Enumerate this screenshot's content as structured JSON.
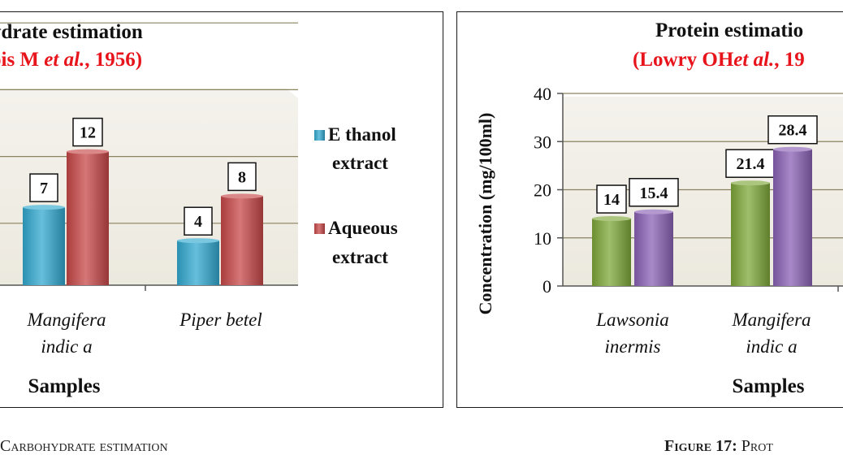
{
  "charts": {
    "left": {
      "title_line1": "ydrate estimation",
      "title_line2_pre": "ois M ",
      "title_line2_em": "et al.",
      "title_line2_post": ", 1956)",
      "legend": [
        "E thanol",
        "extract",
        "Aqueous",
        "extract"
      ],
      "x_title": "Samples"
    },
    "right": {
      "title_line1": "Protein estimatio",
      "title_line2_pre": "(Lowry OH",
      "title_line2_em": "et al.",
      "title_line2_post": ", 19",
      "y_title": "Concentration (mg/100ml)",
      "x_title": "Samples"
    }
  },
  "captions": {
    "left": "Carbohydrate estimation",
    "right_label": "Figure 17:",
    "right_text": " Prot"
  },
  "colors": {
    "ethanol": "#33a9d0",
    "aqueous": "#c84848",
    "green": "#7fa83a",
    "purple": "#8b62b6",
    "title_red": "#e8141b",
    "plot_bg": "#ece9df",
    "grid": "#8a8260"
  },
  "chart_data": [
    {
      "type": "bar",
      "title": "Carbohydrate estimation",
      "xlabel": "Samples",
      "categories": [
        "Mangifera indica",
        "Piper betel"
      ],
      "category_labels": [
        [
          "Mangifera",
          "indic a"
        ],
        [
          "Piper betel"
        ]
      ],
      "series": [
        {
          "name": "Ethanol extract",
          "values": [
            7,
            4
          ]
        },
        {
          "name": "Aqueous extract",
          "values": [
            12,
            8
          ]
        }
      ],
      "grid": true,
      "legend": "right"
    },
    {
      "type": "bar",
      "title": "Protein estimation",
      "xlabel": "Samples",
      "ylabel": "Concentration (mg/100ml)",
      "categories": [
        "Lawsonia inermis",
        "Mangifera indica"
      ],
      "category_labels": [
        [
          "Lawsonia",
          "inermis"
        ],
        [
          "Mangifera",
          "indic a"
        ]
      ],
      "series": [
        {
          "values": [
            14,
            21.4
          ]
        },
        {
          "values": [
            15.4,
            28.4
          ]
        }
      ],
      "ylim": [
        0,
        40
      ],
      "yticks": [
        0,
        10,
        20,
        30,
        40
      ],
      "grid": true
    }
  ]
}
